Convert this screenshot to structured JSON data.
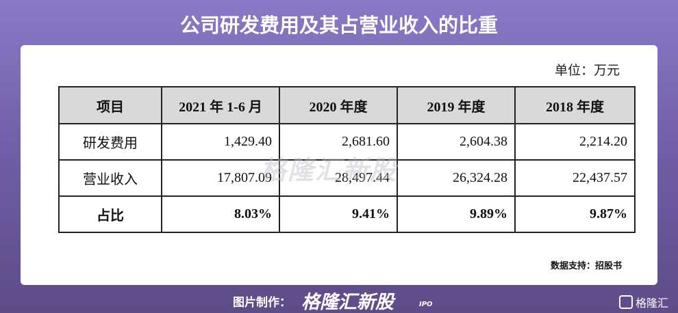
{
  "header": {
    "title": "公司研发费用及其占营业收入的比重"
  },
  "unit": "单位：万元",
  "table": {
    "columns": [
      "项目",
      "2021 年 1-6 月",
      "2020 年度",
      "2019 年度",
      "2018 年度"
    ],
    "rows": [
      [
        "研发费用",
        "1,429.40",
        "2,681.60",
        "2,604.38",
        "2,214.20"
      ],
      [
        "营业收入",
        "17,807.09",
        "28,497.44",
        "26,324.28",
        "22,437.57"
      ],
      [
        "占比",
        "8.03%",
        "9.41%",
        "9.89%",
        "9.87%"
      ]
    ]
  },
  "source": "数据支持：招股书",
  "watermark": "格隆汇新股",
  "footer": {
    "label": "图片制作：",
    "brand": "格隆汇新股",
    "brand_tag": "IPO",
    "logo": "格隆汇"
  }
}
